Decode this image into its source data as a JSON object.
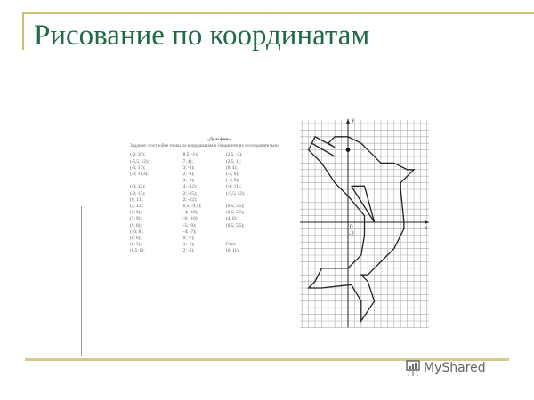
{
  "slide": {
    "title": "Рисование по координатам"
  },
  "worksheet": {
    "heading": "«Дельфин»",
    "task": "Задание: постройте точки по координатам и соедините их последовательно:",
    "columns": [
      [
        "(-2; 10);",
        "(-5,5; 12);",
        "(-5; 13);",
        "(-2; 11,4);",
        "",
        "(-3; 12);",
        "(-2; 13);",
        "(0; 13);",
        "(2; 12);",
        "(5; 9);",
        "(7; 9);",
        "(9; 8);",
        "(10; 8);",
        "(8; 6);",
        "(8; 5);",
        "(8,5; 0);"
      ],
      [
        "(8,5; -1);",
        "(7; 4);",
        "(3; -8);",
        "(2; -8);",
        "(3; -9);",
        "(4; -12);",
        "(2; -15);",
        "(2; -12);",
        "(0,5; -9,5);",
        "(-4; -10);",
        "(-6; -10);",
        "(-5; -9);",
        "(-4; -7);",
        "(0; -7);",
        "(1; -6);",
        "(2; -5);"
      ],
      [
        "(2,5; -2);",
        "(2,5; 1);",
        "(0; 4);",
        "(-2; 6);",
        "(-4; 9);",
        "(-6; 11);",
        "(-5,5; 12);",
        "",
        "(0,5; 5,5);",
        "(2,5; 5,5);",
        "(4; 0);",
        "(0,5; 5,5);",
        "",
        "",
        "Глаз:",
        "(0; 11)."
      ]
    ]
  },
  "plot": {
    "axis_x_label": "x",
    "axis_y_label": "y",
    "origin_label": "0",
    "tick_label": "-2",
    "eye": [
      0,
      11
    ]
  },
  "watermark": {
    "text": "MyShared"
  },
  "colors": {
    "title": "#1f6b45",
    "rule": "#cdbf7a"
  }
}
